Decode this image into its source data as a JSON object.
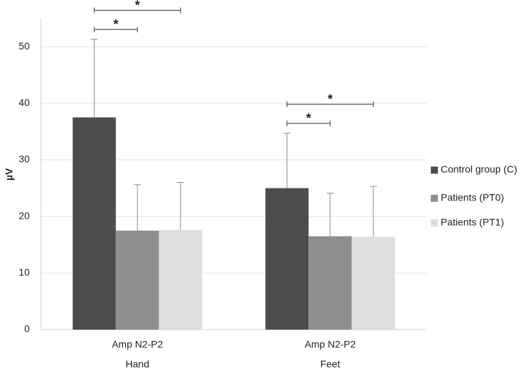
{
  "chart_data": {
    "type": "bar",
    "y_label": "µV",
    "categories": [
      "Amp N2-P2",
      "Amp N2-P2"
    ],
    "category_groups": [
      "Hand",
      "Feet"
    ],
    "series": [
      {
        "name": "Control group (C)",
        "color": "#4d4d4d",
        "values": [
          37.5,
          25.0
        ],
        "errors": [
          13.8,
          9.7
        ]
      },
      {
        "name": "Patients (PT0)",
        "color": "#8f8f8f",
        "values": [
          17.5,
          16.5
        ],
        "errors": [
          8.1,
          7.6
        ]
      },
      {
        "name": "Patients (PT1)",
        "color": "#dedede",
        "values": [
          17.6,
          16.4
        ],
        "errors": [
          8.4,
          8.9
        ]
      }
    ],
    "significance": [
      {
        "category": 0,
        "from": 0,
        "to": 1,
        "label": "*"
      },
      {
        "category": 0,
        "from": 0,
        "to": 2,
        "label": "*"
      },
      {
        "category": 1,
        "from": 0,
        "to": 1,
        "label": "*"
      },
      {
        "category": 1,
        "from": 0,
        "to": 2,
        "label": "*"
      }
    ],
    "ylim": [
      0,
      55
    ],
    "yticks": [
      0,
      10,
      20,
      30,
      40,
      50
    ],
    "grid": true,
    "legend": "right"
  }
}
